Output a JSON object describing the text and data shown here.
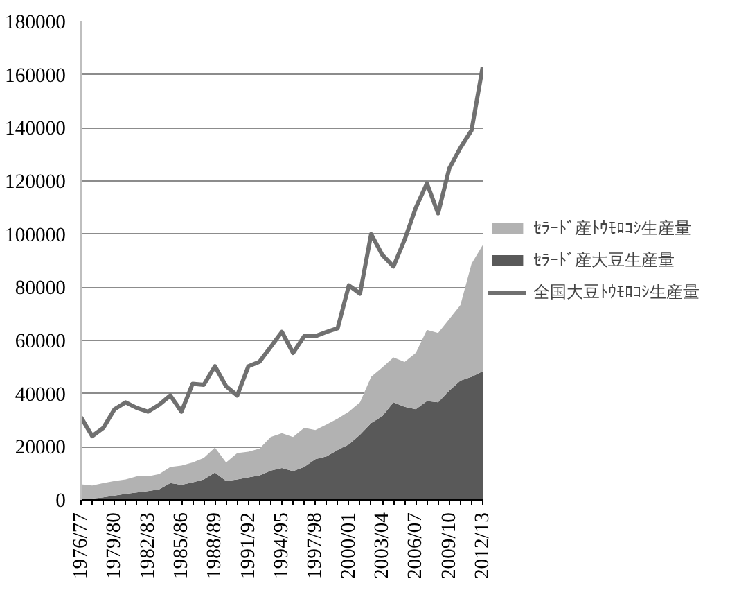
{
  "chart_data": {
    "type": "area",
    "stacked": true,
    "categories": [
      "1976/77",
      null,
      null,
      "1979/80",
      null,
      null,
      "1982/83",
      null,
      null,
      "1985/86",
      null,
      null,
      "1988/89",
      null,
      null,
      "1991/92",
      null,
      null,
      "1994/95",
      null,
      null,
      "1997/98",
      null,
      null,
      "2000/01",
      null,
      null,
      "2003/04",
      null,
      null,
      "2006/07",
      null,
      null,
      "2009/10",
      null,
      null,
      "2012/13"
    ],
    "series": [
      {
        "name": "ｾﾗｰﾄﾞ産大豆生産量",
        "color": "#595959",
        "values": [
          300,
          500,
          1000,
          1600,
          2300,
          2800,
          3300,
          4000,
          6300,
          5700,
          6600,
          7700,
          10300,
          7100,
          7700,
          8500,
          9200,
          11000,
          12000,
          10800,
          12400,
          15300,
          16400,
          18800,
          20900,
          24500,
          28900,
          31500,
          36700,
          35000,
          34100,
          37200,
          36700,
          41100,
          44900,
          46300,
          48400
        ]
      },
      {
        "name": "ｾﾗｰﾄﾞ産ﾄｳﾓﾛｺｼ生産量",
        "color": "#b2b2b2",
        "values": [
          5600,
          4900,
          5300,
          5500,
          5400,
          6100,
          5600,
          5700,
          6100,
          7200,
          7500,
          8100,
          9400,
          7000,
          9900,
          9600,
          10100,
          12700,
          13100,
          12900,
          14700,
          11000,
          12000,
          11800,
          12300,
          12200,
          17400,
          18300,
          16900,
          16900,
          21200,
          26800,
          26100,
          26900,
          28400,
          42600,
          47500
        ]
      },
      {
        "name": "全国大豆ﾄｳﾓﾛｺｼ生産量",
        "type": "line",
        "color": "#707070",
        "values": [
          31100,
          24000,
          27100,
          34100,
          36700,
          34600,
          33200,
          35800,
          39300,
          33200,
          43700,
          43300,
          50300,
          42800,
          39300,
          50300,
          52000,
          57600,
          63200,
          55300,
          61600,
          61600,
          63200,
          64600,
          80700,
          77600,
          100000,
          92200,
          87800,
          97900,
          109900,
          119100,
          107800,
          124700,
          132500,
          139100,
          163000
        ]
      }
    ],
    "ylim": [
      0,
      180000
    ],
    "yticks": [
      0,
      20000,
      40000,
      60000,
      80000,
      100000,
      120000,
      140000,
      160000,
      180000
    ],
    "grid": "y",
    "legend": "right"
  }
}
